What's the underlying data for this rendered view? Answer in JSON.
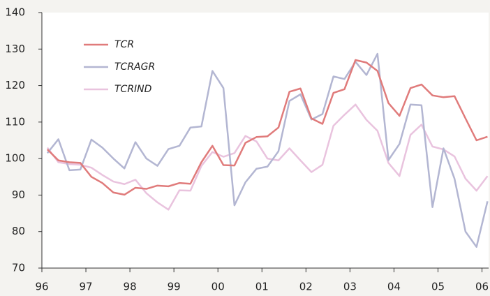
{
  "chart_data": {
    "type": "line",
    "x": [
      1996.125,
      1996.375,
      1996.625,
      1996.875,
      1997.125,
      1997.375,
      1997.625,
      1997.875,
      1998.125,
      1998.375,
      1998.625,
      1998.875,
      1999.125,
      1999.375,
      1999.625,
      1999.875,
      2000.125,
      2000.375,
      2000.625,
      2000.875,
      2001.125,
      2001.375,
      2001.625,
      2001.875,
      2002.125,
      2002.375,
      2002.625,
      2002.875,
      2003.125,
      2003.375,
      2003.625,
      2003.875,
      2004.125,
      2004.375,
      2004.625,
      2004.875,
      2005.125,
      2005.375,
      2005.625,
      2005.875,
      2006.125
    ],
    "series": [
      {
        "name": "TCR",
        "color": "#e07b7b",
        "values": [
          102.5,
          99.5,
          99,
          98.8,
          95,
          93.3,
          90.7,
          90.1,
          92,
          91.7,
          92.6,
          92.4,
          93.3,
          93.1,
          99,
          103.5,
          98.2,
          98.1,
          104.3,
          105.9,
          106.1,
          108.5,
          118.3,
          119.2,
          111,
          109.5,
          118,
          119,
          127,
          126.3,
          124,
          115.2,
          111.7,
          119.3,
          120.3,
          117.3,
          116.8,
          117.1,
          111,
          105,
          106
        ]
      },
      {
        "name": "TCRAGR",
        "color": "#b3b6d2",
        "values": [
          101.5,
          105.3,
          96.8,
          97,
          105.2,
          103,
          100,
          97.3,
          104.5,
          100,
          98,
          102.6,
          103.5,
          108.5,
          108.8,
          124,
          119.3,
          87.2,
          93.5,
          97.2,
          97.8,
          102,
          115.8,
          117.6,
          110.7,
          112.2,
          122.5,
          121.8,
          126.5,
          122.9,
          128.7,
          99.6,
          104,
          114.8,
          114.6,
          86.7,
          102.8,
          94.5,
          80,
          75.8,
          88.3
        ]
      },
      {
        "name": "TCRIND",
        "color": "#e9c3de",
        "values": [
          103,
          99,
          98.5,
          98.3,
          97.5,
          95.5,
          93.7,
          93,
          94.2,
          90.5,
          88,
          86,
          91.3,
          91.2,
          98,
          101.8,
          100.5,
          101.5,
          106.2,
          104.7,
          100,
          99.5,
          102.8,
          99.5,
          96.3,
          98.3,
          109,
          112,
          114.8,
          110.6,
          107.6,
          98.8,
          95.2,
          106.5,
          109.3,
          103.3,
          102.5,
          100.6,
          94.5,
          91.2,
          95.2
        ]
      }
    ],
    "xlim": [
      1996,
      2006.15
    ],
    "xticks": [
      {
        "value": 1996,
        "label": "96"
      },
      {
        "value": 1997,
        "label": "97"
      },
      {
        "value": 1998,
        "label": "98"
      },
      {
        "value": 1999,
        "label": "99"
      },
      {
        "value": 2000,
        "label": "00"
      },
      {
        "value": 2001,
        "label": "01"
      },
      {
        "value": 2002,
        "label": "02"
      },
      {
        "value": 2003,
        "label": "03"
      },
      {
        "value": 2004,
        "label": "04"
      },
      {
        "value": 2005,
        "label": "05"
      },
      {
        "value": 2006,
        "label": "06"
      }
    ],
    "ylim": [
      70,
      140
    ],
    "yticks": [
      70,
      80,
      90,
      100,
      110,
      120,
      130,
      140
    ]
  }
}
